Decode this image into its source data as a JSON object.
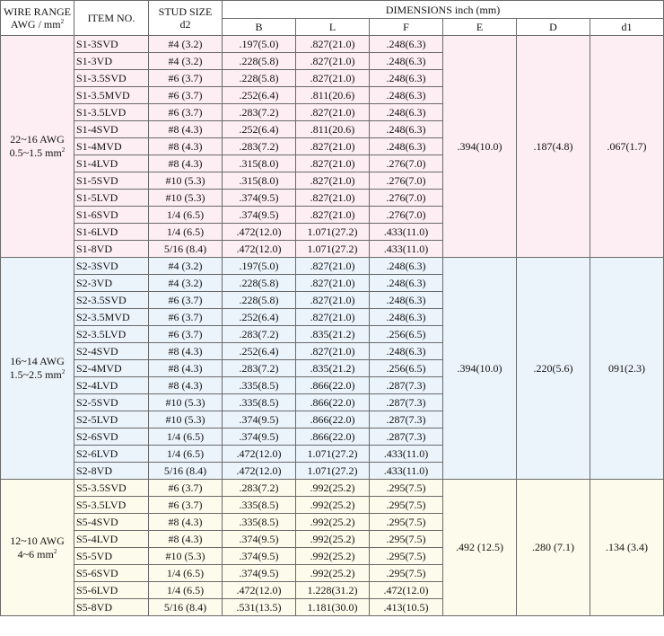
{
  "header": {
    "wire_range": "WIRE RANGE",
    "wire_unit": "AWG / mm",
    "wire_unit_sup": "2",
    "item_no": "ITEM NO.",
    "stud_size": "STUD SIZE",
    "stud_sub": "d2",
    "dimensions": "DIMENSIONS inch (mm)",
    "col_b": "B",
    "col_l": "L",
    "col_f": "F",
    "col_e": "E",
    "col_d": "D",
    "col_d1": "d1"
  },
  "groups": [
    {
      "awg": "22~16 AWG",
      "mm": "0.5~1.5 mm",
      "mm_sup": "2",
      "E": ".394(10.0)",
      "D": ".187(4.8)",
      "d1": ".067(1.7)",
      "rows": [
        {
          "item": "S1-3SVD",
          "stud": "#4 (3.2)",
          "B": ".197(5.0)",
          "L": ".827(21.0)",
          "F": ".248(6.3)"
        },
        {
          "item": "S1-3VD",
          "stud": "#4 (3.2)",
          "B": ".228(5.8)",
          "L": ".827(21.0)",
          "F": ".248(6.3)"
        },
        {
          "item": "S1-3.5SVD",
          "stud": "#6 (3.7)",
          "B": ".228(5.8)",
          "L": ".827(21.0)",
          "F": ".248(6.3)"
        },
        {
          "item": "S1-3.5MVD",
          "stud": "#6 (3.7)",
          "B": ".252(6.4)",
          "L": ".811(20.6)",
          "F": ".248(6.3)"
        },
        {
          "item": "S1-3.5LVD",
          "stud": "#6 (3.7)",
          "B": ".283(7.2)",
          "L": ".827(21.0)",
          "F": ".248(6.3)"
        },
        {
          "item": "S1-4SVD",
          "stud": "#8 (4.3)",
          "B": ".252(6.4)",
          "L": ".811(20.6)",
          "F": ".248(6.3)"
        },
        {
          "item": "S1-4MVD",
          "stud": "#8 (4.3)",
          "B": ".283(7.2)",
          "L": ".827(21.0)",
          "F": ".248(6.3)"
        },
        {
          "item": "S1-4LVD",
          "stud": "#8 (4.3)",
          "B": ".315(8.0)",
          "L": ".827(21.0)",
          "F": ".276(7.0)"
        },
        {
          "item": "S1-5SVD",
          "stud": "#10 (5.3)",
          "B": ".315(8.0)",
          "L": ".827(21.0)",
          "F": ".276(7.0)"
        },
        {
          "item": "S1-5LVD",
          "stud": "#10 (5.3)",
          "B": ".374(9.5)",
          "L": ".827(21.0)",
          "F": ".276(7.0)"
        },
        {
          "item": "S1-6SVD",
          "stud": "1/4 (6.5)",
          "B": ".374(9.5)",
          "L": ".827(21.0)",
          "F": ".276(7.0)"
        },
        {
          "item": "S1-6LVD",
          "stud": "1/4 (6.5)",
          "B": ".472(12.0)",
          "L": "1.071(27.2)",
          "F": ".433(11.0)"
        },
        {
          "item": "S1-8VD",
          "stud": "5/16 (8.4)",
          "B": ".472(12.0)",
          "L": "1.071(27.2)",
          "F": ".433(11.0)"
        }
      ]
    },
    {
      "awg": "16~14 AWG",
      "mm": "1.5~2.5 mm",
      "mm_sup": "2",
      "E": ".394(10.0)",
      "D": ".220(5.6)",
      "d1": "091(2.3)",
      "rows": [
        {
          "item": "S2-3SVD",
          "stud": "#4 (3.2)",
          "B": ".197(5.0)",
          "L": ".827(21.0)",
          "F": ".248(6.3)"
        },
        {
          "item": "S2-3VD",
          "stud": "#4 (3.2)",
          "B": ".228(5.8)",
          "L": ".827(21.0)",
          "F": ".248(6.3)"
        },
        {
          "item": "S2-3.5SVD",
          "stud": "#6 (3.7)",
          "B": ".228(5.8)",
          "L": ".827(21.0)",
          "F": ".248(6.3)"
        },
        {
          "item": "S2-3.5MVD",
          "stud": "#6 (3.7)",
          "B": ".252(6.4)",
          "L": ".827(21.0)",
          "F": ".248(6.3)"
        },
        {
          "item": "S2-3.5LVD",
          "stud": "#6 (3.7)",
          "B": ".283(7.2)",
          "L": ".835(21.2)",
          "F": ".256(6.5)"
        },
        {
          "item": "S2-4SVD",
          "stud": "#8 (4.3)",
          "B": ".252(6.4)",
          "L": ".827(21.0)",
          "F": ".248(6.3)"
        },
        {
          "item": "S2-4MVD",
          "stud": "#8 (4.3)",
          "B": ".283(7.2)",
          "L": ".835(21.2)",
          "F": ".256(6.5)"
        },
        {
          "item": "S2-4LVD",
          "stud": "#8 (4.3)",
          "B": ".335(8.5)",
          "L": ".866(22.0)",
          "F": ".287(7.3)"
        },
        {
          "item": "S2-5SVD",
          "stud": "#10 (5.3)",
          "B": ".335(8.5)",
          "L": ".866(22.0)",
          "F": ".287(7.3)"
        },
        {
          "item": "S2-5LVD",
          "stud": "#10 (5.3)",
          "B": ".374(9.5)",
          "L": ".866(22.0)",
          "F": ".287(7.3)"
        },
        {
          "item": "S2-6SVD",
          "stud": "1/4 (6.5)",
          "B": ".374(9.5)",
          "L": ".866(22.0)",
          "F": ".287(7.3)"
        },
        {
          "item": "S2-6LVD",
          "stud": "1/4 (6.5)",
          "B": ".472(12.0)",
          "L": "1.071(27.2)",
          "F": ".433(11.0)"
        },
        {
          "item": "S2-8VD",
          "stud": "5/16 (8.4)",
          "B": ".472(12.0)",
          "L": "1.071(27.2)",
          "F": ".433(11.0)"
        }
      ]
    },
    {
      "awg": "12~10 AWG",
      "mm": "4~6 mm",
      "mm_sup": "2",
      "E": ".492 (12.5)",
      "D": ".280 (7.1)",
      "d1": ".134 (3.4)",
      "rows": [
        {
          "item": "S5-3.5SVD",
          "stud": "#6 (3.7)",
          "B": ".283(7.2)",
          "L": ".992(25.2)",
          "F": ".295(7.5)"
        },
        {
          "item": "S5-3.5LVD",
          "stud": "#6 (3.7)",
          "B": ".335(8.5)",
          "L": ".992(25.2)",
          "F": ".295(7.5)"
        },
        {
          "item": "S5-4SVD",
          "stud": "#8 (4.3)",
          "B": ".335(8.5)",
          "L": ".992(25.2)",
          "F": ".295(7.5)"
        },
        {
          "item": "S5-4LVD",
          "stud": "#8 (4.3)",
          "B": ".374(9.5)",
          "L": ".992(25.2)",
          "F": ".295(7.5)"
        },
        {
          "item": "S5-5VD",
          "stud": "#10 (5.3)",
          "B": ".374(9.5)",
          "L": ".992(25.2)",
          "F": ".295(7.5)"
        },
        {
          "item": "S5-6SVD",
          "stud": "1/4 (6.5)",
          "B": ".374(9.5)",
          "L": ".992(25.2)",
          "F": ".295(7.5)"
        },
        {
          "item": "S5-6LVD",
          "stud": "1/4 (6.5)",
          "B": ".472(12.0)",
          "L": "1.228(31.2)",
          "F": ".472(12.0)"
        },
        {
          "item": "S5-8VD",
          "stud": "5/16 (8.4)",
          "B": ".531(13.5)",
          "L": "1.181(30.0)",
          "F": ".413(10.5)"
        }
      ]
    }
  ],
  "colors": {
    "group_0_bg": "#fdeef4",
    "group_1_bg": "#ecf4fb",
    "group_2_bg": "#fdfbeb",
    "border": "#6a6a6a"
  }
}
